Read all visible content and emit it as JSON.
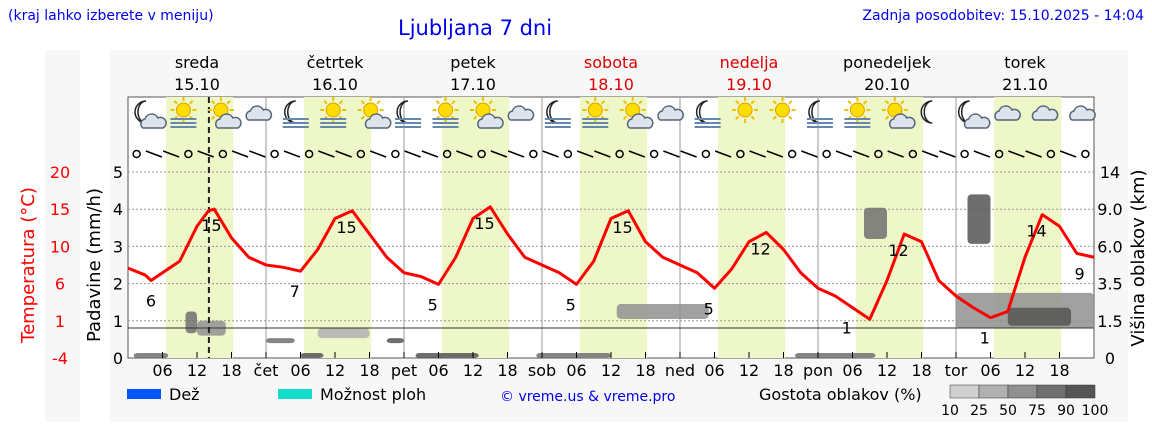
{
  "header": {
    "left_note": "(kraj lahko izberete v meniju)",
    "title": "Ljubljana 7 dni",
    "updated": "Zadnja posodobitev: 15.10.2025 - 14:04"
  },
  "colors": {
    "temperature": "#ff0000",
    "daylight": "#eef7c8",
    "weekend": "#dd0000",
    "link": "#0000ee",
    "rain": "#0055ff",
    "showers": "#11ddcc"
  },
  "chart_data": {
    "type": "line",
    "days": [
      {
        "name": "sreda",
        "date": "15.10",
        "weekend": false
      },
      {
        "name": "četrtek",
        "date": "16.10",
        "weekend": false
      },
      {
        "name": "petek",
        "date": "17.10",
        "weekend": false
      },
      {
        "name": "sobota",
        "date": "18.10",
        "weekend": true
      },
      {
        "name": "nedelja",
        "date": "19.10",
        "weekend": true
      },
      {
        "name": "ponedeljek",
        "date": "20.10",
        "weekend": false
      },
      {
        "name": "torek",
        "date": "21.10",
        "weekend": false
      }
    ],
    "x_tick_labels": [
      "06",
      "12",
      "18",
      "čet",
      "06",
      "12",
      "18",
      "pet",
      "06",
      "12",
      "18",
      "sob",
      "06",
      "12",
      "18",
      "ned",
      "06",
      "12",
      "18",
      "pon",
      "06",
      "12",
      "18",
      "tor",
      "06",
      "12",
      "18"
    ],
    "y_left_temp": {
      "label": "Temperatura (°C)",
      "ticks": [
        "20",
        "15",
        "10",
        "6",
        "1",
        "-4"
      ],
      "range": [
        -4,
        20
      ]
    },
    "y_left_precip": {
      "label": "Padavine (mm/h)",
      "ticks": [
        "5",
        "4",
        "3",
        "2",
        "1",
        "0"
      ],
      "range": [
        0,
        5
      ]
    },
    "y_right": {
      "label": "Višina oblakov (km)",
      "ticks": [
        "14",
        "9.0",
        "6.0",
        "3.5",
        "1.5",
        "0"
      ]
    },
    "current_time_hour": 14.07,
    "temperature": {
      "hours": [
        0,
        3,
        4,
        6,
        9,
        12,
        14,
        15,
        18,
        21,
        24,
        27,
        30,
        33,
        36,
        39,
        42,
        45,
        48,
        51,
        54,
        57,
        60,
        63,
        66,
        69,
        72,
        75,
        78,
        81,
        84,
        87,
        90,
        93,
        96,
        99,
        102,
        105,
        108,
        111,
        114,
        117,
        120,
        123,
        126,
        129,
        132,
        135,
        138,
        141,
        144,
        147,
        150,
        153,
        156,
        159,
        162,
        165,
        168
      ],
      "values": [
        7.6,
        6.7,
        6,
        7,
        8.5,
        13,
        15,
        15.2,
        11.5,
        9,
        8,
        7.7,
        7.2,
        10,
        14,
        15,
        12,
        9,
        7,
        6.5,
        5.5,
        9,
        14,
        15.5,
        12,
        9,
        8,
        7,
        5.5,
        8.5,
        14,
        15,
        11,
        9,
        8,
        7,
        5,
        7.5,
        11,
        12.2,
        10,
        7,
        5,
        4,
        2.5,
        1,
        6,
        12,
        11,
        6,
        4,
        2.5,
        1.2,
        2,
        9,
        14.5,
        13,
        9.5,
        9
      ]
    },
    "temp_labels": [
      {
        "hour": 4,
        "value": "6"
      },
      {
        "hour": 14.5,
        "value": "15"
      },
      {
        "hour": 29,
        "value": "7"
      },
      {
        "hour": 38,
        "value": "15"
      },
      {
        "hour": 53,
        "value": "5"
      },
      {
        "hour": 62,
        "value": "15"
      },
      {
        "hour": 77,
        "value": "5"
      },
      {
        "hour": 86,
        "value": "15"
      },
      {
        "hour": 101,
        "value": "5"
      },
      {
        "hour": 110,
        "value": "12"
      },
      {
        "hour": 125,
        "value": "1"
      },
      {
        "hour": 134,
        "value": "12"
      },
      {
        "hour": 149,
        "value": "1"
      },
      {
        "hour": 158,
        "value": "14"
      },
      {
        "hour": 165.5,
        "value": "9"
      }
    ],
    "clouds": [
      {
        "h0": 1,
        "h1": 7,
        "z0": 0,
        "z1": 0.2,
        "d": 75
      },
      {
        "h0": 10,
        "h1": 12,
        "z0": 1,
        "z1": 2,
        "d": 75
      },
      {
        "h0": 12,
        "h1": 17,
        "z0": 0.9,
        "z1": 1.5,
        "d": 50
      },
      {
        "h0": 30,
        "h1": 34,
        "z0": 0,
        "z1": 0.2,
        "d": 90
      },
      {
        "h0": 24,
        "h1": 29,
        "z0": 0.6,
        "z1": 0.8,
        "d": 75
      },
      {
        "h0": 33,
        "h1": 42,
        "z0": 0.8,
        "z1": 1.2,
        "d": 25
      },
      {
        "h0": 45,
        "h1": 48,
        "z0": 0.6,
        "z1": 0.8,
        "d": 90
      },
      {
        "h0": 50,
        "h1": 61,
        "z0": 0,
        "z1": 0.2,
        "d": 90
      },
      {
        "h0": 71,
        "h1": 84,
        "z0": 0,
        "z1": 0.2,
        "d": 75
      },
      {
        "h0": 85,
        "h1": 101,
        "z0": 1.6,
        "z1": 2.4,
        "d": 50
      },
      {
        "h0": 116,
        "h1": 130,
        "z0": 0,
        "z1": 0.2,
        "d": 75
      },
      {
        "h0": 128,
        "h1": 132,
        "z0": 6.6,
        "z1": 9.2,
        "d": 75
      },
      {
        "h0": 146,
        "h1": 150,
        "z0": 6.2,
        "z1": 11,
        "d": 90
      },
      {
        "h0": 144,
        "h1": 168,
        "z0": 1.2,
        "z1": 3,
        "d": 50
      },
      {
        "h0": 153,
        "h1": 164,
        "z0": 1.3,
        "z1": 2.2,
        "d": 90
      }
    ]
  },
  "icons": [
    "moon-cloud",
    "sun-fog",
    "sun-cloud",
    "cloud",
    "moon-fog",
    "sun-fog",
    "sun-cloud",
    "moon-fog",
    "sun-fog",
    "sun-cloud",
    "cloud",
    "moon-fog",
    "sun-fog",
    "sun-cloud",
    "cloud",
    "moon-fog",
    "sun",
    "sun",
    "moon-fog",
    "sun-fog",
    "sun-cloud",
    "moon",
    "moon-cloud",
    "cloud",
    "cloud",
    "cloud"
  ],
  "legend": {
    "rain": "Dež",
    "showers": "Možnost ploh",
    "credit": "© vreme.us & vreme.pro",
    "cloud_density": "Gostota oblakov (%)",
    "density_ticks": [
      "10",
      "25",
      "50",
      "75",
      "90",
      "100"
    ]
  }
}
